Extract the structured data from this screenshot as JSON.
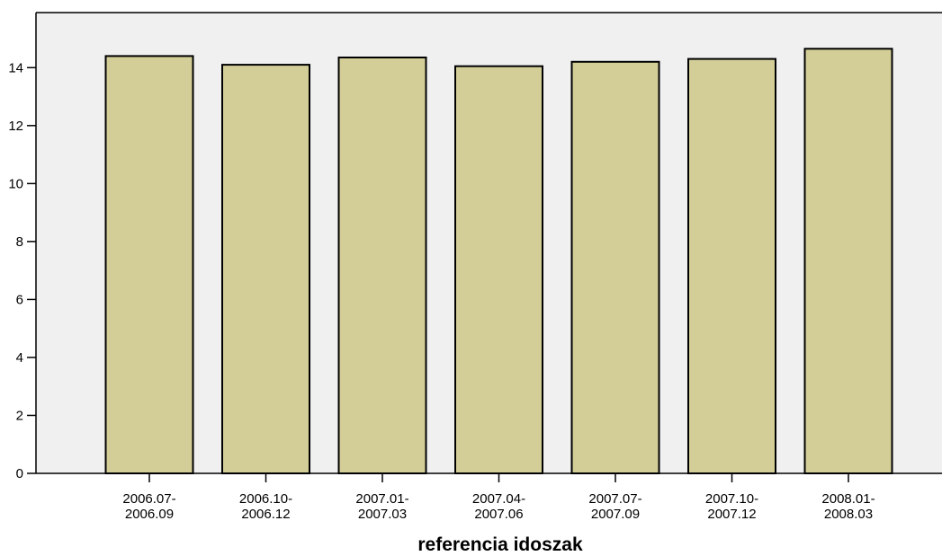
{
  "chart_data": {
    "type": "bar",
    "title": "",
    "xlabel": "referencia idoszak",
    "ylabel": "",
    "categories": [
      [
        "2006.07-",
        "2006.09"
      ],
      [
        "2006.10-",
        "2006.12"
      ],
      [
        "2007.01-",
        "2007.03"
      ],
      [
        "2007.04-",
        "2007.06"
      ],
      [
        "2007.07-",
        "2007.09"
      ],
      [
        "2007.10-",
        "2007.12"
      ],
      [
        "2008.01-",
        "2008.03"
      ]
    ],
    "values": [
      14.4,
      14.1,
      14.35,
      14.05,
      14.2,
      14.3,
      14.65
    ],
    "ylim": [
      0,
      15.9
    ],
    "yticks": [
      0,
      2,
      4,
      6,
      8,
      10,
      12,
      14
    ],
    "grid": false,
    "legend": "none",
    "colors": {
      "bar_fill": "#d3ce98",
      "bar_stroke": "#000000",
      "plot_background": "#f0f0f0"
    }
  }
}
